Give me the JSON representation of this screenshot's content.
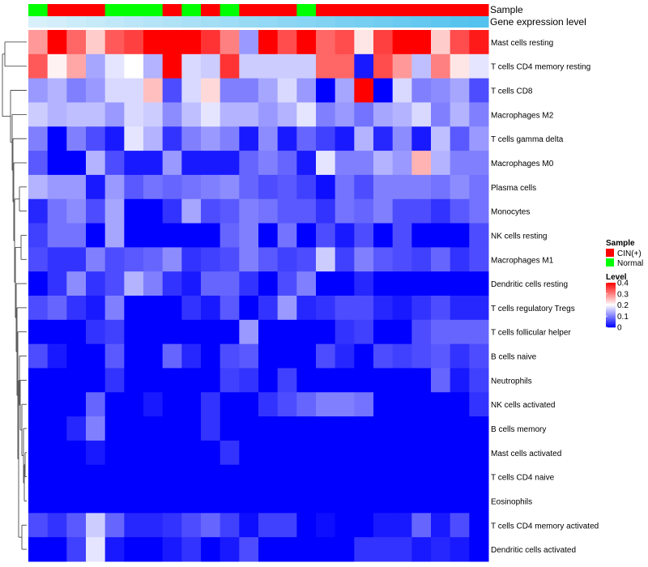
{
  "chart_data": {
    "type": "heatmap",
    "title": "",
    "annotation_tracks": [
      {
        "label": "Sample",
        "values": [
          "Normal",
          "CIN(+)",
          "CIN(+)",
          "CIN(+)",
          "Normal",
          "Normal",
          "Normal",
          "CIN(+)",
          "Normal",
          "CIN(+)",
          "Normal",
          "CIN(+)",
          "CIN(+)",
          "CIN(+)",
          "Normal",
          "CIN(+)",
          "CIN(+)",
          "CIN(+)",
          "CIN(+)",
          "CIN(+)",
          "CIN(+)",
          "CIN(+)",
          "CIN(+)",
          "CIN(+)"
        ]
      },
      {
        "label": "Gene expression level",
        "values": [
          0.0,
          0.04,
          0.09,
          0.13,
          0.17,
          0.22,
          0.26,
          0.3,
          0.35,
          0.39,
          0.43,
          0.48,
          0.52,
          0.57,
          0.61,
          0.65,
          0.7,
          0.74,
          0.78,
          0.83,
          0.87,
          0.91,
          0.96,
          1.0
        ]
      }
    ],
    "rows": [
      "Mast cells resting",
      "T cells CD4 memory resting",
      "T cells CD8",
      "Macrophages M2",
      "T cells gamma delta",
      "Macrophages M0",
      "Plasma cells",
      "Monocytes",
      "NK cells resting",
      "Macrophages M1",
      "Dendritic cells resting",
      "T cells regulatory  Tregs",
      "T cells follicular helper",
      "B cells naive",
      "Neutrophils",
      "NK cells activated",
      "B cells memory",
      "Mast cells activated",
      "T cells CD4 naive",
      "Eosinophils",
      "T cells CD4 memory activated",
      "Dendritic cells activated"
    ],
    "values": [
      [
        0.28,
        0.4,
        0.32,
        0.24,
        0.33,
        0.35,
        0.4,
        0.4,
        0.4,
        0.36,
        0.3,
        0.12,
        0.4,
        0.34,
        0.4,
        0.32,
        0.34,
        0.22,
        0.35,
        0.4,
        0.4,
        0.24,
        0.34,
        0.38
      ],
      [
        0.33,
        0.21,
        0.27,
        0.13,
        0.18,
        0.2,
        0.14,
        0.4,
        0.17,
        0.16,
        0.36,
        0.16,
        0.16,
        0.16,
        0.16,
        0.32,
        0.32,
        0.02,
        0.34,
        0.28,
        0.15,
        0.3,
        0.22,
        0.18
      ],
      [
        0.12,
        0.14,
        0.1,
        0.12,
        0.17,
        0.17,
        0.25,
        0.06,
        0.17,
        0.23,
        0.1,
        0.1,
        0.13,
        0.17,
        0.12,
        0.0,
        0.13,
        0.4,
        0.0,
        0.17,
        0.1,
        0.11,
        0.13,
        0.06
      ],
      [
        0.16,
        0.14,
        0.15,
        0.15,
        0.12,
        0.17,
        0.16,
        0.11,
        0.15,
        0.18,
        0.14,
        0.14,
        0.12,
        0.14,
        0.18,
        0.1,
        0.12,
        0.09,
        0.13,
        0.14,
        0.17,
        0.1,
        0.14,
        0.1
      ],
      [
        0.1,
        0.0,
        0.1,
        0.06,
        0.02,
        0.18,
        0.14,
        0.04,
        0.1,
        0.12,
        0.1,
        0.02,
        0.11,
        0.02,
        0.08,
        0.05,
        0.02,
        0.14,
        0.03,
        0.11,
        0.02,
        0.15,
        0.07,
        0.12
      ],
      [
        0.07,
        0.0,
        0.0,
        0.14,
        0.06,
        0.02,
        0.02,
        0.12,
        0.02,
        0.02,
        0.02,
        0.08,
        0.1,
        0.08,
        0.02,
        0.18,
        0.1,
        0.1,
        0.14,
        0.12,
        0.26,
        0.14,
        0.1,
        0.1
      ],
      [
        0.14,
        0.12,
        0.12,
        0.02,
        0.12,
        0.07,
        0.09,
        0.08,
        0.09,
        0.1,
        0.11,
        0.08,
        0.06,
        0.07,
        0.05,
        0.01,
        0.09,
        0.06,
        0.1,
        0.1,
        0.1,
        0.09,
        0.11,
        0.09
      ],
      [
        0.03,
        0.09,
        0.11,
        0.06,
        0.13,
        0.0,
        0.0,
        0.04,
        0.13,
        0.06,
        0.07,
        0.1,
        0.09,
        0.07,
        0.07,
        0.04,
        0.09,
        0.08,
        0.1,
        0.06,
        0.06,
        0.04,
        0.07,
        0.09
      ],
      [
        0.05,
        0.09,
        0.09,
        0.0,
        0.13,
        0.0,
        0.0,
        0.0,
        0.0,
        0.0,
        0.08,
        0.1,
        0.0,
        0.09,
        0.0,
        0.06,
        0.02,
        0.06,
        0.0,
        0.06,
        0.0,
        0.0,
        0.0,
        0.06
      ],
      [
        0.06,
        0.04,
        0.04,
        0.1,
        0.06,
        0.07,
        0.08,
        0.11,
        0.04,
        0.05,
        0.06,
        0.1,
        0.07,
        0.05,
        0.06,
        0.16,
        0.05,
        0.1,
        0.07,
        0.06,
        0.05,
        0.08,
        0.04,
        0.06
      ],
      [
        0.0,
        0.04,
        0.11,
        0.04,
        0.06,
        0.14,
        0.1,
        0.04,
        0.02,
        0.08,
        0.08,
        0.04,
        0.0,
        0.06,
        0.1,
        0.0,
        0.0,
        0.03,
        0.0,
        0.0,
        0.0,
        0.0,
        0.0,
        0.0
      ],
      [
        0.06,
        0.08,
        0.04,
        0.02,
        0.1,
        0.0,
        0.0,
        0.0,
        0.04,
        0.02,
        0.07,
        0.0,
        0.04,
        0.12,
        0.03,
        0.04,
        0.06,
        0.06,
        0.03,
        0.02,
        0.04,
        0.06,
        0.03,
        0.03
      ],
      [
        0.0,
        0.0,
        0.0,
        0.04,
        0.05,
        0.0,
        0.0,
        0.0,
        0.0,
        0.0,
        0.0,
        0.12,
        0.0,
        0.0,
        0.0,
        0.0,
        0.04,
        0.05,
        0.0,
        0.0,
        0.06,
        0.08,
        0.08,
        0.08
      ],
      [
        0.06,
        0.02,
        0.0,
        0.0,
        0.07,
        0.0,
        0.0,
        0.08,
        0.03,
        0.0,
        0.06,
        0.07,
        0.0,
        0.0,
        0.0,
        0.06,
        0.03,
        0.0,
        0.06,
        0.05,
        0.06,
        0.07,
        0.04,
        0.06
      ],
      [
        0.0,
        0.0,
        0.0,
        0.0,
        0.04,
        0.0,
        0.0,
        0.0,
        0.0,
        0.0,
        0.05,
        0.04,
        0.0,
        0.05,
        0.0,
        0.0,
        0.0,
        0.0,
        0.0,
        0.0,
        0.0,
        0.08,
        0.02,
        0.05
      ],
      [
        0.0,
        0.0,
        0.0,
        0.08,
        0.0,
        0.0,
        0.02,
        0.0,
        0.0,
        0.04,
        0.0,
        0.0,
        0.04,
        0.06,
        0.08,
        0.1,
        0.1,
        0.09,
        0.0,
        0.0,
        0.0,
        0.0,
        0.0,
        0.04
      ],
      [
        0.0,
        0.0,
        0.03,
        0.1,
        0.0,
        0.0,
        0.0,
        0.0,
        0.0,
        0.04,
        0.0,
        0.0,
        0.0,
        0.0,
        0.0,
        0.0,
        0.0,
        0.0,
        0.0,
        0.0,
        0.0,
        0.0,
        0.0,
        0.0
      ],
      [
        0.0,
        0.0,
        0.0,
        0.02,
        0.0,
        0.0,
        0.0,
        0.0,
        0.0,
        0.0,
        0.04,
        0.0,
        0.0,
        0.0,
        0.0,
        0.0,
        0.0,
        0.0,
        0.0,
        0.0,
        0.0,
        0.0,
        0.0,
        0.0
      ],
      [
        0.0,
        0.0,
        0.0,
        0.0,
        0.0,
        0.0,
        0.0,
        0.0,
        0.0,
        0.0,
        0.0,
        0.0,
        0.0,
        0.0,
        0.0,
        0.0,
        0.0,
        0.0,
        0.0,
        0.0,
        0.0,
        0.0,
        0.0,
        0.0
      ],
      [
        0.0,
        0.0,
        0.0,
        0.0,
        0.0,
        0.0,
        0.0,
        0.0,
        0.0,
        0.0,
        0.0,
        0.0,
        0.0,
        0.0,
        0.0,
        0.0,
        0.0,
        0.0,
        0.0,
        0.0,
        0.0,
        0.0,
        0.0,
        0.0
      ],
      [
        0.06,
        0.04,
        0.07,
        0.16,
        0.08,
        0.03,
        0.03,
        0.04,
        0.06,
        0.08,
        0.05,
        0.01,
        0.05,
        0.05,
        0.0,
        0.01,
        0.0,
        0.0,
        0.02,
        0.02,
        0.08,
        0.02,
        0.06,
        0.0
      ],
      [
        0.0,
        0.0,
        0.05,
        0.18,
        0.02,
        0.0,
        0.0,
        0.02,
        0.04,
        0.0,
        0.02,
        0.06,
        0.0,
        0.0,
        0.0,
        0.0,
        0.0,
        0.04,
        0.04,
        0.04,
        0.02,
        0.03,
        0.02,
        0.0
      ]
    ],
    "color_scale": {
      "min": 0,
      "max": 0.4,
      "low": "#0000ff",
      "mid": "#ffffff",
      "high": "#ff0000",
      "mid_value": 0.2
    },
    "legend": {
      "sample_title": "Sample",
      "sample_entries": [
        {
          "label": "CIN(+)",
          "color": "#ff0000"
        },
        {
          "label": "Normal",
          "color": "#00ff00"
        }
      ],
      "level_title": "Level",
      "level_ticks": [
        0.4,
        0.3,
        0.2,
        0.1,
        0
      ]
    },
    "dendrogram": "rows clustered (left side)"
  },
  "colors": {
    "cin": "#ff0000",
    "normal": "#00ff00",
    "expr_low": "#d8f0fa",
    "expr_high": "#53c2ee"
  }
}
